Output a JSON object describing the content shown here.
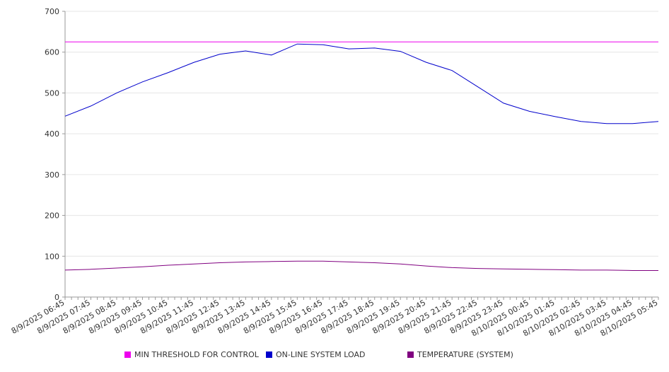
{
  "chart_data": {
    "type": "line",
    "title": "",
    "xlabel": "",
    "ylabel": "",
    "ylim": [
      0,
      700
    ],
    "yticks": [
      0,
      100,
      200,
      300,
      400,
      500,
      600,
      700
    ],
    "grid": true,
    "legend_position": "bottom",
    "categories": [
      "8/9/2025 06:45",
      "8/9/2025 07:45",
      "8/9/2025 08:45",
      "8/9/2025 09:45",
      "8/9/2025 10:45",
      "8/9/2025 11:45",
      "8/9/2025 12:45",
      "8/9/2025 13:45",
      "8/9/2025 14:45",
      "8/9/2025 15:45",
      "8/9/2025 16:45",
      "8/9/2025 17:45",
      "8/9/2025 18:45",
      "8/9/2025 19:45",
      "8/9/2025 20:45",
      "8/9/2025 21:45",
      "8/9/2025 22:45",
      "8/9/2025 23:45",
      "8/10/2025 00:45",
      "8/10/2025 01:45",
      "8/10/2025 02:45",
      "8/10/2025 03:45",
      "8/10/2025 04:45",
      "8/10/2025 05:45"
    ],
    "series": [
      {
        "name": "MIN THRESHOLD FOR CONTROL",
        "color": "#ee00ee",
        "values": [
          625,
          625,
          625,
          625,
          625,
          625,
          625,
          625,
          625,
          625,
          625,
          625,
          625,
          625,
          625,
          625,
          625,
          625,
          625,
          625,
          625,
          625,
          625,
          625
        ]
      },
      {
        "name": "ON-LINE SYSTEM LOAD",
        "color": "#0000cc",
        "values": [
          443,
          468,
          500,
          527,
          550,
          575,
          595,
          603,
          593,
          620,
          618,
          608,
          610,
          602,
          575,
          555,
          515,
          475,
          455,
          442,
          430,
          425,
          425,
          430
        ]
      },
      {
        "name": "TEMPERATURE (SYSTEM)",
        "color": "#800080",
        "values": [
          66,
          68,
          71,
          74,
          78,
          81,
          84,
          86,
          87,
          88,
          88,
          86,
          84,
          81,
          76,
          72,
          70,
          69,
          68,
          67,
          66,
          66,
          65,
          65
        ]
      }
    ]
  }
}
